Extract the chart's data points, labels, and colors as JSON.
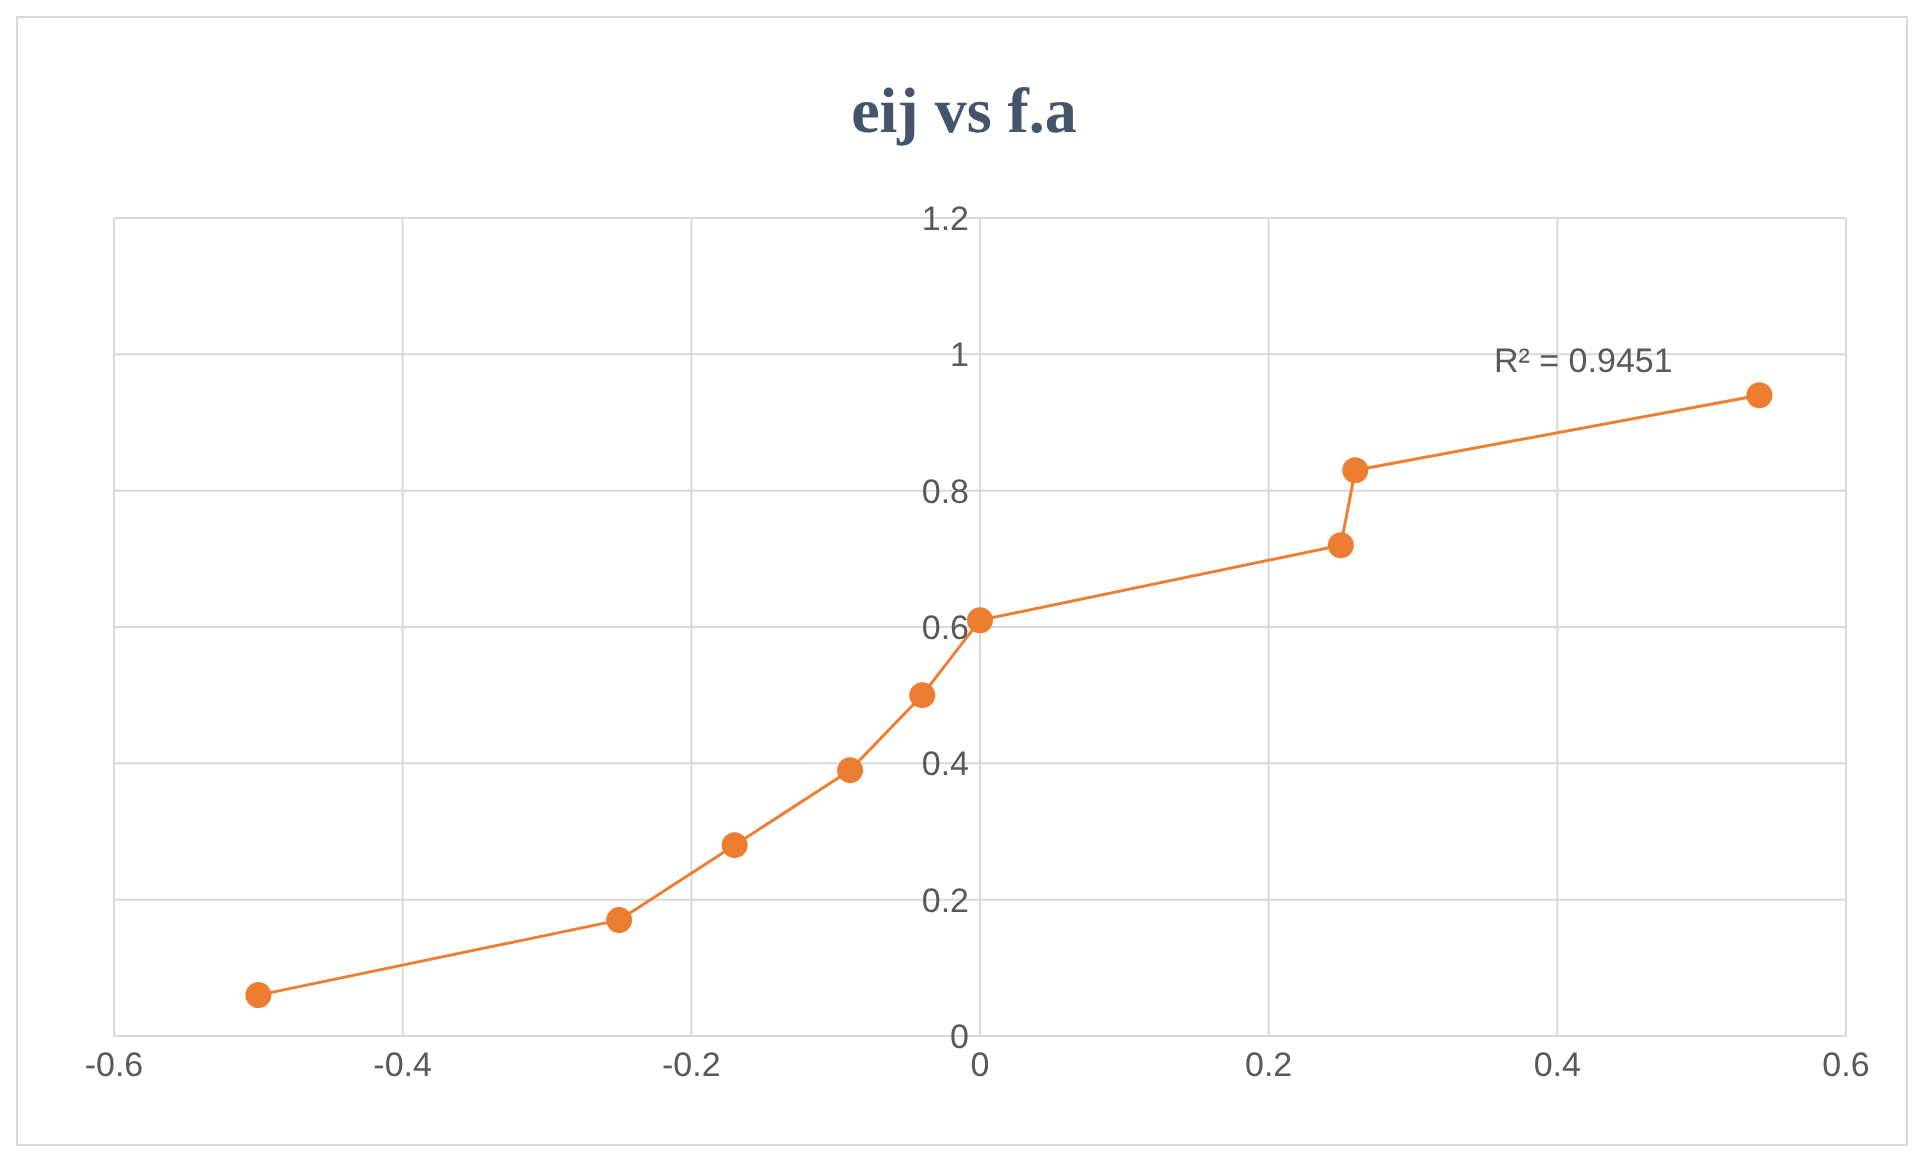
{
  "chart_data": {
    "type": "line",
    "title": "eij vs f.a",
    "x": [
      -0.5,
      -0.25,
      -0.17,
      -0.09,
      -0.04,
      0,
      0.25,
      0.26,
      0.54
    ],
    "values": [
      0.06,
      0.17,
      0.28,
      0.39,
      0.5,
      0.61,
      0.72,
      0.83,
      0.94
    ],
    "color": "#ed7d31",
    "marker": "circle",
    "line_style": "solid",
    "xlim": [
      -0.6,
      0.6
    ],
    "xticks": [
      -0.6,
      -0.4,
      -0.2,
      0,
      0.2,
      0.4,
      0.6
    ],
    "ylim": [
      0,
      1.2
    ],
    "yticks": [
      0,
      0.2,
      0.4,
      0.6,
      0.8,
      1,
      1.2
    ],
    "grid": true,
    "annotations": [
      "R² = 0.9451"
    ]
  }
}
